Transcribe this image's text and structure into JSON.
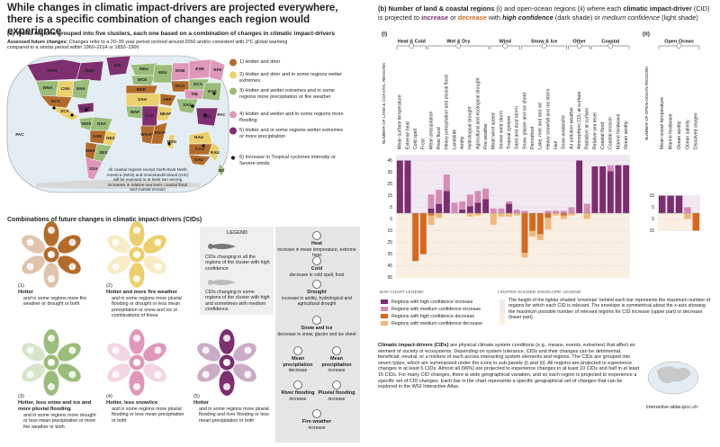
{
  "title": "While changes in climatic impact-drivers are projected everywhere, there is a specific combination of changes each region would experience",
  "panel_a": {
    "title": "(a) World regions grouped into five clusters, each one based on a combination of changes in climatic impact-drivers",
    "note_label": "Assessed future changes:",
    "note": "Changes refer to a 20–30 year period centred around 2050 and/or consistent with 2°C global warming compared to a similar period within 1960–2014 or 1850–1900",
    "map_note": "All coastal regions except North-East North America (NEN) and Greenland/Iceland (GIC) will be exposed to at least two among increases in relative sea level, coastal flood and coastal erosion",
    "regions": [
      "GIC",
      "NWN",
      "NEN",
      "WNA",
      "CNA",
      "ENA",
      "NCA",
      "SCA",
      "CAR",
      "NWS",
      "NSA",
      "SAM",
      "NES",
      "SWS",
      "SES",
      "SSA",
      "NEU",
      "WCE",
      "EEU",
      "MED",
      "SAH",
      "WAF",
      "CAF",
      "NEAF",
      "WSAF",
      "ESAF",
      "MDG",
      "ARP",
      "WSB",
      "ESB",
      "RFE",
      "WCA",
      "ECA",
      "TIB",
      "EAS",
      "SAS",
      "SEA",
      "NAU",
      "CAU",
      "EAU",
      "SAU",
      "NZ",
      "PAC",
      "PAC"
    ],
    "clusters": [
      {
        "label": "1) Hotter and drier",
        "color": "#b36b2c"
      },
      {
        "label": "2) Hotter and drier and in some regions wetter extremes",
        "color": "#eccf6e"
      },
      {
        "label": "3) Hotter and wetter extremes and in some regions more precipitation or fire weather",
        "color": "#9bbd7b"
      },
      {
        "label": "4) Hotter and wetter and in some regions more flooding",
        "color": "#df98ba"
      },
      {
        "label": "5) Hotter and in some regions wetter extremes or more precipitation",
        "color": "#7d2f70"
      },
      {
        "label": "6) Increase in Tropical cyclones intensity or Severe winds",
        "color": "#000000"
      }
    ]
  },
  "combinations": {
    "title": "Combinations of future changes in climatic impact-drivers (CIDs)",
    "wheels": [
      {
        "number": "(1)",
        "name": "Hotter",
        "text": "and in some regions more fire weather or drought or both"
      },
      {
        "number": "(2)",
        "name": "Hotter and more fire weather",
        "text": "and in some regions more pluvial flooding or drought or less mean precipitation or snow and ice or combinations of these"
      },
      {
        "number": "(3)",
        "name": "Hotter, less snow and ice and more pluvial flooding",
        "text": "and in some regions more drought or less mean precipitation or more fire weather or both"
      },
      {
        "number": "(4)",
        "name": "Hotter, less snow/ice",
        "text": "and in some regions more pluvial flooding or less mean precipitation or both"
      },
      {
        "number": "(5)",
        "name": "Hotter",
        "text": "and in some regions more pluvial flooding and river flooding or less mean precipitation or both"
      }
    ],
    "legend": {
      "title": "LEGEND",
      "all": "CIDs changing in all the regions of the cluster with high confidence",
      "some": "CIDs changing in some regions of the cluster with high and sometimes with medium confidence",
      "items": [
        {
          "title": "Heat",
          "text": "increase in mean temperature, extreme heat"
        },
        {
          "title": "Cold",
          "text": "decrease in cold spell, frost"
        },
        {
          "title": "Drought",
          "text": "increase in aridity, hydrological and agricultural drought"
        },
        {
          "title": "Snow and Ice",
          "text": "decrease in snow, glacier and ice sheet"
        },
        {
          "title": "Mean precipitation",
          "text": "decrease"
        },
        {
          "title": "Mean precipitation",
          "text": "increase"
        },
        {
          "title": "River flooding",
          "text": "increase"
        },
        {
          "title": "Pluvial flooding",
          "text": "increase"
        },
        {
          "title": "Fire weather",
          "text": "increase"
        }
      ]
    }
  },
  "chart_title": [
    "(b) Number of land & coastal regions ",
    "(i) and open-ocean regions (ii) where each ",
    "climatic impact-driver",
    " (CID) is projected to ",
    "increase",
    " or ",
    "decrease",
    " with ",
    "high confidence",
    " (dark shade) or ",
    "medium confidence",
    " (light shade)"
  ],
  "chart_data": [
    {
      "type": "bar",
      "label": "(i)",
      "y_label": "NUMBER OF LAND & COASTAL REGIONS",
      "groups": [
        {
          "name": "Heat & Cold",
          "categories": [
            "Mean surface temperature",
            "Extreme heat",
            "Cold spell",
            "Frost"
          ]
        },
        {
          "name": "Wet & Dry",
          "categories": [
            "Mean precipitation",
            "River flood",
            "Heavy precipitation and pluvial flood",
            "Landslide",
            "Aridity",
            "Hydrological drought",
            "Agricultural and ecological drought",
            "Fire weather"
          ]
        },
        {
          "name": "Wind",
          "categories": [
            "Mean wind speed",
            "Severe wind storm",
            "Tropical cyclone",
            "Sand and dust storm"
          ]
        },
        {
          "name": "Snow & Ice",
          "categories": [
            "Snow, glacier and ice sheet",
            "Permafrost",
            "Lake, river and sea ice",
            "Heavy snowfall and ice storm",
            "Hail",
            "Snow avalanche"
          ]
        },
        {
          "name": "Other",
          "categories": [
            "Air pollution weather",
            "Atmospheric CO₂ at surface",
            "Radiation at surface"
          ]
        },
        {
          "name": "Coastal",
          "categories": [
            "Relative sea level",
            "Coastal flood",
            "Coastal erosion",
            "Marine heatwave",
            "Ocean acidity"
          ]
        }
      ],
      "series": [
        {
          "name": "Regions with high confidence increase",
          "color": "#7b2d6e",
          "values": [
            45,
            45,
            0,
            0,
            4,
            8,
            19,
            0,
            3,
            6,
            9,
            12,
            0,
            0,
            8,
            0,
            0,
            0,
            0,
            0,
            0,
            0,
            0,
            45,
            0,
            40,
            40,
            36,
            41,
            41
          ]
        },
        {
          "name": "Regions with medium confidence increase",
          "color": "#d68bb7",
          "values": [
            0,
            0,
            0,
            0,
            12,
            12,
            14,
            9,
            7,
            10,
            10,
            9,
            4,
            4,
            2,
            3,
            2,
            0,
            0,
            2,
            2,
            2,
            5,
            0,
            8,
            0,
            0,
            5,
            0,
            0
          ]
        },
        {
          "name": "Regions with high confidence decrease",
          "color": "#d2691e",
          "values": [
            0,
            0,
            -41,
            -35,
            -2,
            0,
            0,
            0,
            0,
            0,
            0,
            0,
            0,
            0,
            0,
            0,
            -34,
            -15,
            -18,
            -4,
            0,
            -2,
            0,
            0,
            0,
            0,
            0,
            0,
            0,
            0
          ]
        },
        {
          "name": "Regions with medium confidence decrease",
          "color": "#f2b77c",
          "values": [
            0,
            0,
            0,
            0,
            -8,
            -4,
            0,
            0,
            0,
            -3,
            -2,
            0,
            -10,
            -3,
            -3,
            -2,
            -4,
            -5,
            -5,
            -10,
            -2,
            -3,
            -2,
            0,
            -5,
            0,
            0,
            0,
            0,
            0
          ]
        }
      ],
      "ylim": [
        -55,
        50
      ],
      "yticks": [
        45,
        35,
        25,
        15,
        5,
        {
          "value": -5,
          "label": "5"
        },
        {
          "value": -15,
          "label": "15"
        },
        {
          "value": -25,
          "label": "25"
        },
        {
          "value": -35,
          "label": "35"
        },
        {
          "value": -45,
          "label": "45"
        },
        {
          "value": -55,
          "label": "55"
        }
      ],
      "grid": true
    },
    {
      "type": "bar",
      "label": "(ii)",
      "y_label": "NUMBER OF OPEN-OCEAN REGIONS",
      "groups": [
        {
          "name": "Open Ocean",
          "categories": [
            "Mean ocean temperature",
            "Marine heatwave",
            "Ocean acidity",
            "Ocean salinity",
            "Dissolved oxygen"
          ]
        }
      ],
      "series": [
        {
          "color": "#7b2d6e",
          "values": [
            15,
            15,
            15,
            0,
            0
          ]
        },
        {
          "color": "#d68bb7",
          "values": [
            0,
            0,
            0,
            5,
            0
          ]
        },
        {
          "color": "#d2691e",
          "values": [
            0,
            0,
            0,
            0,
            -15
          ]
        },
        {
          "color": "#f2b77c",
          "values": [
            0,
            0,
            0,
            -5,
            0
          ]
        }
      ],
      "ylim": [
        -15,
        15
      ],
      "yticks": [
        15,
        5,
        {
          "value": -5,
          "label": "5"
        },
        {
          "value": -15,
          "label": "15"
        }
      ],
      "grid": true
    }
  ],
  "bar_legend_title": "BAR CHART LEGEND",
  "envelope_legend": {
    "title": "LIGHTER SHADED 'ENVELOPE' LEGEND",
    "text": "The height of the lighter shaded 'envelope' behind each bar represents the maximum number of regions for which each CID is relevant. The envelope is symmetrical about the x-axis showing the maximum possible number of relevant regions for CID increase (upper part) or decrease (lower part)."
  },
  "footer": {
    "lead": "Climatic impact-drivers (CIDs)",
    "text": " are physical climate system conditions (e.g., means, events, extremes) that affect an element of society or ecosystems. Depending on system tolerance, CIDs and their changes can be detrimental, beneficial, neutral, or a mixture of each across interacting system elements and regions. The CIDs are grouped into seven types, which are summarized under the icons in sub-panels (i) and (ii). All regions are projected to experience changes in at least 5 CIDs. Almost all (96%) are projected to experience changes in at least 10 CIDs and half in at least 15 CIDs. For many CID changes, there is wide geographical variation, and so each region is projected to experience a specific set of CID changes. Each bar in the chart represents a specific geographical set of changes that can be explored in the WGI Interactive Atlas.",
    "url": "interactive-atlas.ipcc.ch"
  }
}
